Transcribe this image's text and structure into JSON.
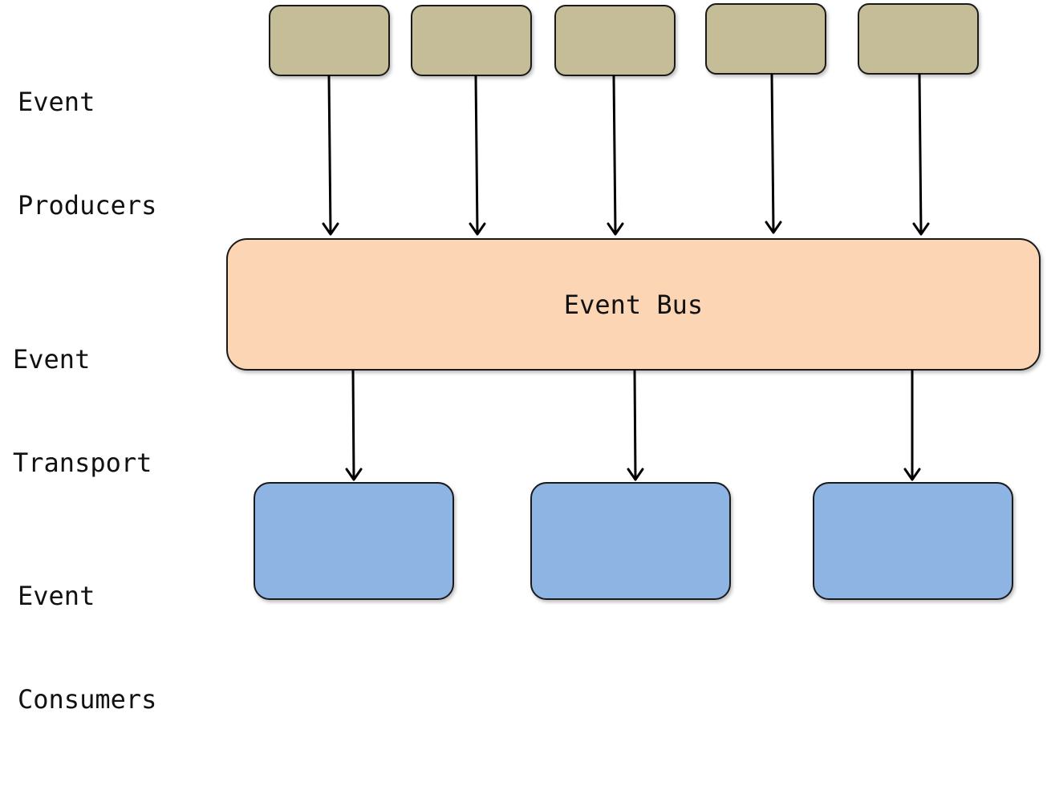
{
  "labels": {
    "producers": [
      "Event",
      "Producers"
    ],
    "transport": [
      "Event",
      "Transport"
    ],
    "consumers": [
      "Event",
      "Consumers"
    ]
  },
  "bus": {
    "label": "Event Bus"
  },
  "colors": {
    "producer_fill": "#c4bd97",
    "bus_fill": "#fcd5b5",
    "consumer_fill": "#8eb4e3",
    "stroke": "#1a1a1a"
  }
}
